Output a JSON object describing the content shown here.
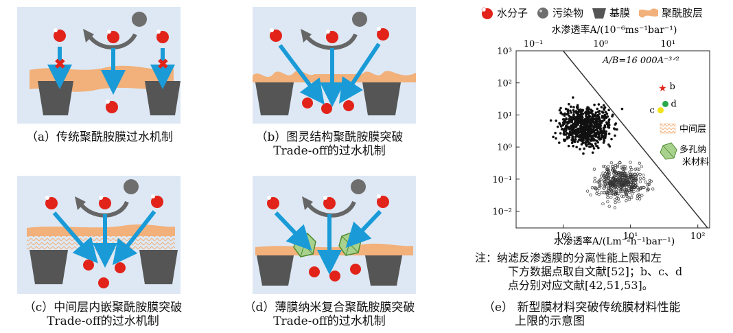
{
  "panels": {
    "a": {
      "caption_lines": [
        "（a）传统聚酰胺膜过水机制"
      ]
    },
    "b": {
      "caption_lines": [
        "（b）图灵结构聚酰胺膜突破",
        "Trade-off的过水机制"
      ]
    },
    "c": {
      "caption_lines": [
        "（c）中间层内嵌聚酰胺膜突破",
        "Trade-off的过水机制"
      ]
    },
    "d": {
      "caption_lines": [
        "（d）薄膜纳米复合聚酰胺膜突破",
        "Trade-off的过水机制"
      ]
    },
    "e": {
      "caption_lines": [
        "（e） 新型膜材料突破传统膜材料性能",
        "上限的示意图"
      ]
    }
  },
  "legend": {
    "water": "水分子",
    "pollutant": "污染物",
    "base": "基膜",
    "polyamide": "聚酰胺层"
  },
  "colors": {
    "panel_bg": "#dde8f4",
    "polyamide": "#f2b07a",
    "arrow": "#1a9bd7",
    "substrate": "#555555",
    "water_red": "#e2231a",
    "star": "#e2231a",
    "point_d": "#2aa84a",
    "point_c": "#f1e21a"
  },
  "chart_data": {
    "type": "scatter",
    "xlabel": "水渗透率A/(Lm⁻²h⁻¹bar⁻¹)",
    "x2label": "水渗透率A/(10⁻⁶ms⁻¹bar⁻¹)",
    "xscale": "log",
    "yscale": "log",
    "xlim": [
      0.2,
      150
    ],
    "ylim": [
      0.003,
      1000
    ],
    "x_ticks": [
      "10⁰",
      "10¹",
      "10²"
    ],
    "x2_ticks": [
      "10⁻¹",
      "10⁰",
      "10¹"
    ],
    "y_ticks": [
      "10³",
      "10²",
      "10¹",
      "10⁰",
      "10⁻¹",
      "10⁻²"
    ],
    "upper_bound_label": "A/B=16 000A⁻³ᐟ²",
    "points": [
      {
        "label": "b",
        "x": 30,
        "y": 70,
        "marker": "star"
      },
      {
        "label": "d",
        "x": 33,
        "y": 22,
        "marker": "circle"
      },
      {
        "label": "c",
        "x": 28,
        "y": 14,
        "marker": "circle"
      }
    ],
    "region_legend": {
      "interlayer": "中间层",
      "nano": "多孔纳米材料"
    }
  },
  "note_lines": [
    "注：纳滤反渗透膜的分离性能上限和左",
    "下方数据点取自文献[52]；b、c、d",
    "点分别对应文献[42,51,53]。"
  ]
}
